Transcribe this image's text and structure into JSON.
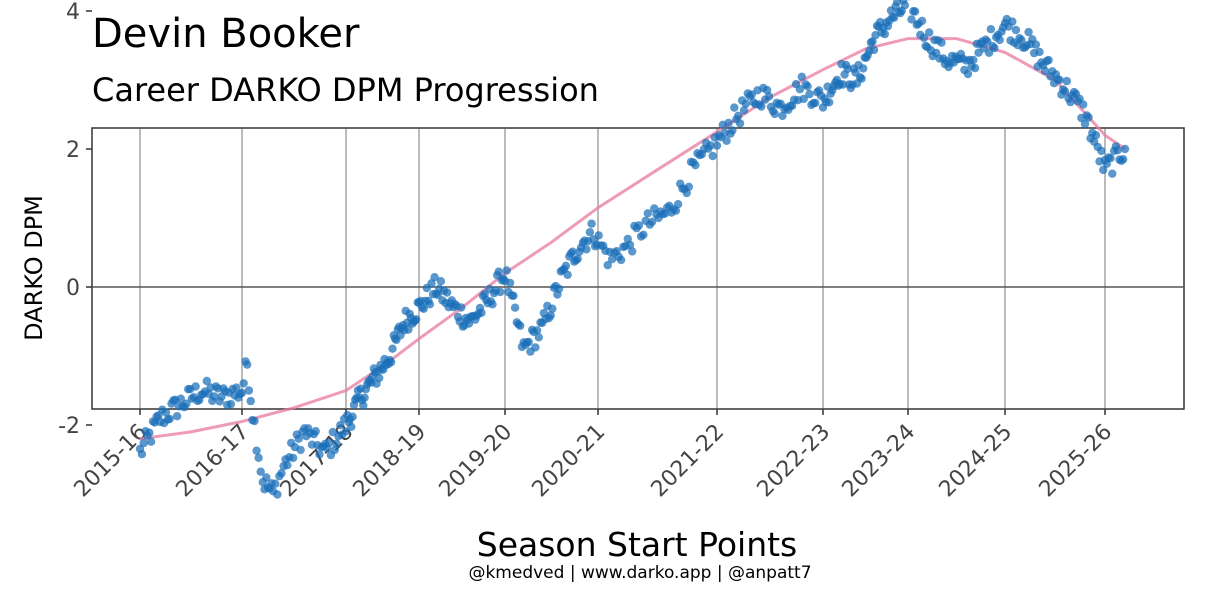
{
  "chart_data": {
    "type": "scatter",
    "title": "Devin Booker",
    "subtitle": "Career DARKO DPM Progression",
    "xlabel": "Season Start Points",
    "ylabel": "DARKO DPM",
    "caption": "@kmedved | www.darko.app | @anpatt7",
    "ylim": [
      -3.5,
      4.6
    ],
    "y_ticks": [
      4,
      2,
      0,
      -2
    ],
    "y_tick_labels": [
      "4",
      "2",
      "0",
      "-2"
    ],
    "x_ticks": [
      "2015-16",
      "2016-17",
      "2017-18",
      "2018-19",
      "2019-20",
      "2020-21",
      "2021-22",
      "2022-23",
      "2023-24",
      "2024-25",
      "2025-26"
    ],
    "grid": "vertical lines at season starts",
    "reference_line": 0,
    "colors": {
      "points": "#1a6fb8",
      "trend": "#e8799f",
      "zero_line": "#555555"
    },
    "series": [
      {
        "kind": "points",
        "x": [
          0,
          0.2,
          0.4,
          0.6,
          0.8,
          1.0,
          1.05,
          1.1,
          1.2,
          1.3,
          1.4,
          1.6,
          1.8,
          2.0,
          2.2,
          2.4,
          2.6,
          2.8,
          3.0,
          3.2,
          3.4,
          3.6,
          3.8,
          4.0,
          4.2,
          4.4,
          4.6,
          4.8,
          4.95,
          5.1,
          5.25,
          5.4,
          5.6,
          5.8,
          6.0,
          6.2,
          6.4,
          6.6,
          6.8,
          7.0,
          7.2,
          7.4,
          7.6,
          7.8,
          8.0,
          8.2,
          8.4,
          8.6,
          8.8,
          9.0,
          9.2,
          9.4,
          9.6,
          9.8,
          10.0,
          10.2
        ],
        "y": [
          -2.4,
          -1.9,
          -1.7,
          -1.5,
          -1.6,
          -1.5,
          -1.1,
          -1.8,
          -2.8,
          -3.0,
          -2.6,
          -2.1,
          -2.4,
          -2.0,
          -1.6,
          -1.3,
          -1.0,
          -0.5,
          -0.3,
          0.0,
          -0.3,
          -0.5,
          -0.2,
          0.2,
          -0.9,
          -0.6,
          0.1,
          0.6,
          0.8,
          0.4,
          0.6,
          0.9,
          1.1,
          1.7,
          2.1,
          2.5,
          2.8,
          2.6,
          2.9,
          2.7,
          3.1,
          3.0,
          3.6,
          3.9,
          4.1,
          3.6,
          3.3,
          3.2,
          3.5,
          3.8,
          3.6,
          3.2,
          2.9,
          2.5,
          1.7,
          2.0
        ]
      },
      {
        "kind": "trend",
        "x": [
          0,
          0.5,
          1,
          1.5,
          2,
          2.5,
          3,
          3.5,
          4,
          4.5,
          5,
          5.5,
          6,
          6.5,
          7,
          7.5,
          8,
          8.5,
          9,
          9.5,
          10,
          10.2
        ],
        "y": [
          -2.2,
          -2.1,
          -1.95,
          -1.75,
          -1.5,
          -1.15,
          -0.75,
          -0.3,
          0.2,
          0.65,
          1.15,
          1.7,
          2.25,
          2.75,
          3.15,
          3.45,
          3.6,
          3.6,
          3.4,
          3.0,
          2.2,
          2.0
        ]
      }
    ]
  }
}
